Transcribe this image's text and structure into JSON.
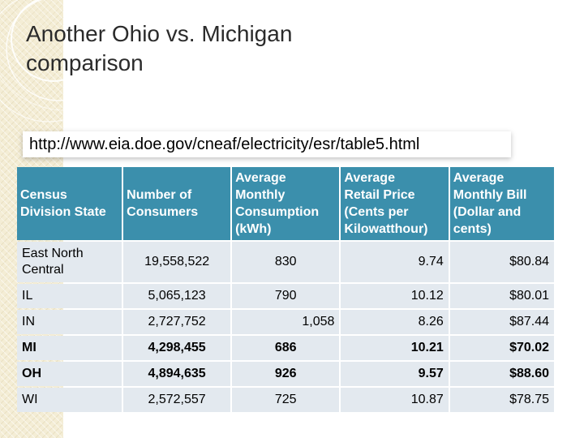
{
  "slide": {
    "title_line1": "Another Ohio vs. Michigan",
    "title_line2": "comparison",
    "url": "http://www.eia.doe.gov/cneaf/electricity/esr/table5.html"
  },
  "colors": {
    "header_bg": "#3b8fac",
    "cell_bg": "#e3e9ef",
    "band_bg": "#f4edd5"
  },
  "table": {
    "headers": [
      [
        "Census",
        "Division State"
      ],
      [
        "Number of",
        "Consumers"
      ],
      [
        "Average",
        "Monthly",
        "Consumption",
        "(kWh)"
      ],
      [
        "Average",
        "Retail Price",
        "(Cents per",
        "Kilowatthour)"
      ],
      [
        "Average",
        "Monthly Bill",
        "(Dollar and",
        "cents)"
      ]
    ],
    "rows": [
      {
        "region": [
          "East North",
          "Central"
        ],
        "consumers": "19,558,522",
        "consumption": "830",
        "price": "9.74",
        "bill": "$80.84"
      },
      {
        "region": [
          "IL"
        ],
        "consumers": "5,065,123",
        "consumption": "790",
        "price": "10.12",
        "bill": "$80.01"
      },
      {
        "region": [
          "IN"
        ],
        "consumers": "2,727,752",
        "consumption": "1,058",
        "price": "8.26",
        "bill": "$87.44"
      },
      {
        "region": [
          "MI"
        ],
        "consumers": "4,298,455",
        "consumption": "686",
        "price": "10.21",
        "bill": "$70.02"
      },
      {
        "region": [
          "OH"
        ],
        "consumers": "4,894,635",
        "consumption": "926",
        "price": "9.57",
        "bill": "$88.60"
      },
      {
        "region": [
          "WI"
        ],
        "consumers": "2,572,557",
        "consumption": "725",
        "price": "10.87",
        "bill": "$78.75"
      }
    ]
  }
}
